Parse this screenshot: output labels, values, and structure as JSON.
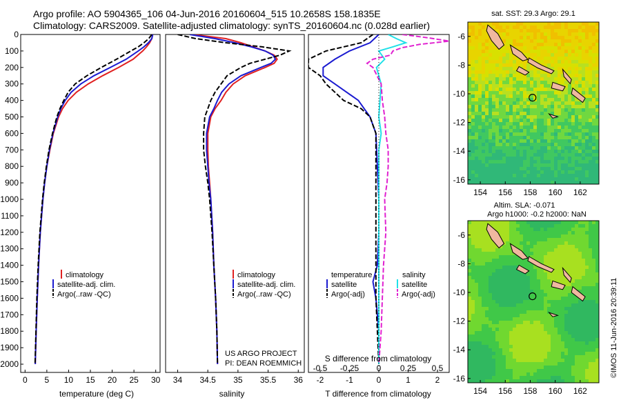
{
  "header": {
    "line1": "Argo profile: AO 5904365_106 04-Jun-2016 20160604_515 10.2658S 158.1835E",
    "line2": "Climatology: CARS2009. Satellite-adjusted climatology: synTS_20160604.nc (0.028d earlier)"
  },
  "colors": {
    "climatology": "#e02020",
    "satellite": "#1a1ad0",
    "argo": "#000000",
    "sal_satellite": "#20e0e8",
    "sal_argo": "#e020d0"
  },
  "chart_data": [
    {
      "type": "line",
      "panel": "temperature",
      "xlabel": "temperature (deg C)",
      "ylabel": "",
      "xlim": [
        -1,
        31
      ],
      "ylim": [
        2050,
        0
      ],
      "xticks": [
        0,
        5,
        10,
        15,
        20,
        25,
        30
      ],
      "yticks": [
        0,
        100,
        200,
        300,
        400,
        500,
        600,
        700,
        800,
        900,
        1000,
        1100,
        1200,
        1300,
        1400,
        1500,
        1600,
        1700,
        1800,
        1900,
        2000
      ],
      "legend": [
        "climatology",
        "satellite-adj. clim.",
        "Argo(..raw -QC)"
      ],
      "series": [
        {
          "name": "climatology",
          "depth": [
            0,
            25,
            50,
            75,
            100,
            150,
            200,
            250,
            300,
            350,
            400,
            450,
            500,
            600,
            700,
            800,
            900,
            1000,
            1200,
            1400,
            1600,
            1800,
            2000
          ],
          "values": [
            29.3,
            29.1,
            28.6,
            27.9,
            27.0,
            24.8,
            21.5,
            17.8,
            14.5,
            11.8,
            9.9,
            8.6,
            7.7,
            6.5,
            5.7,
            5.0,
            4.5,
            4.1,
            3.5,
            3.1,
            2.8,
            2.55,
            2.35
          ]
        },
        {
          "name": "satellite-adj. clim.",
          "depth": [
            0,
            25,
            50,
            75,
            100,
            150,
            200,
            250,
            300,
            350,
            400,
            450,
            500,
            600,
            700,
            800,
            900,
            1000,
            1200,
            1400,
            1600,
            1800,
            2000
          ],
          "values": [
            29.3,
            29.1,
            28.3,
            27.3,
            26.0,
            23.2,
            19.6,
            15.8,
            12.8,
            10.6,
            9.2,
            8.2,
            7.5,
            6.4,
            5.6,
            5.0,
            4.5,
            4.1,
            3.5,
            3.1,
            2.8,
            2.55,
            2.35
          ]
        },
        {
          "name": "Argo(..raw -QC)",
          "depth": [
            0,
            25,
            50,
            75,
            100,
            150,
            200,
            250,
            300,
            350,
            400,
            450,
            500,
            600,
            700,
            800,
            900,
            1000,
            1200,
            1400,
            1600,
            1800,
            2000
          ],
          "values": [
            29.1,
            28.4,
            27.3,
            26.0,
            24.3,
            21.0,
            17.5,
            14.2,
            11.5,
            9.9,
            8.9,
            8.0,
            7.3,
            6.3,
            5.5,
            4.9,
            4.4,
            4.0,
            3.4,
            3.0,
            2.7,
            2.5,
            2.3
          ]
        }
      ]
    },
    {
      "type": "line",
      "panel": "salinity",
      "xlabel": "salinity",
      "ylabel": "",
      "xlim": [
        33.8,
        36.1
      ],
      "ylim": [
        2050,
        0
      ],
      "xticks": [
        34,
        34.5,
        35,
        35.5,
        36
      ],
      "legend": [
        "climatology",
        "satellite-adj. clim.",
        "Argo(..raw -QC)"
      ],
      "annotation": [
        "US ARGO PROJECT",
        "PI: DEAN ROEMMICH"
      ],
      "series": [
        {
          "name": "climatology",
          "depth": [
            0,
            25,
            50,
            75,
            100,
            125,
            150,
            175,
            200,
            250,
            300,
            350,
            400,
            450,
            500,
            600,
            700,
            800,
            900,
            1000,
            1200,
            1400,
            1600,
            1800,
            2000
          ],
          "values": [
            34.25,
            34.8,
            35.05,
            35.25,
            35.45,
            35.6,
            35.65,
            35.6,
            35.45,
            35.12,
            34.92,
            34.8,
            34.72,
            34.62,
            34.55,
            34.5,
            34.5,
            34.51,
            34.53,
            34.55,
            34.58,
            34.6,
            34.63,
            34.65,
            34.66
          ]
        },
        {
          "name": "satellite-adj. clim.",
          "depth": [
            0,
            25,
            50,
            75,
            100,
            125,
            150,
            175,
            200,
            250,
            300,
            350,
            400,
            450,
            500,
            600,
            700,
            800,
            900,
            1000,
            1200,
            1400,
            1600,
            1800,
            2000
          ],
          "values": [
            34.2,
            34.62,
            34.95,
            35.22,
            35.45,
            35.58,
            35.62,
            35.55,
            35.38,
            35.05,
            34.85,
            34.73,
            34.66,
            34.6,
            34.53,
            34.48,
            34.48,
            34.5,
            34.52,
            34.55,
            34.58,
            34.6,
            34.63,
            34.65,
            34.66
          ]
        },
        {
          "name": "Argo(..raw -QC)",
          "depth": [
            0,
            25,
            50,
            75,
            100,
            125,
            150,
            175,
            200,
            250,
            300,
            350,
            400,
            450,
            500,
            600,
            700,
            800,
            900,
            1000,
            1200,
            1400,
            1600,
            1800,
            2000
          ],
          "values": [
            34.0,
            34.3,
            34.8,
            35.4,
            35.85,
            35.7,
            35.45,
            35.2,
            35.05,
            34.82,
            34.72,
            34.62,
            34.55,
            34.5,
            34.45,
            34.43,
            34.43,
            34.46,
            34.5,
            34.53,
            34.57,
            34.6,
            34.63,
            34.65,
            34.66
          ]
        }
      ]
    },
    {
      "type": "line",
      "panel": "difference",
      "xlabel": "T difference from climatology",
      "xlabel_top": "S difference from climatology",
      "xlim": [
        -2.4,
        2.4
      ],
      "ylim": [
        2050,
        0
      ],
      "xticks": [
        -2,
        -1,
        0,
        1,
        2
      ],
      "xticks_s": [
        "-0.5",
        "-0.25",
        "0",
        "0.25",
        "0.5"
      ],
      "xticks_s_values": [
        -0.5,
        -0.25,
        0,
        0.25,
        0.5
      ],
      "s_scale": 4,
      "legend_headers": [
        "temperature",
        "salinity"
      ],
      "legend": [
        "satellite",
        "Argo(-adj)",
        "satellite",
        "Argo(-adj)"
      ],
      "series": [
        {
          "name": "satellite",
          "variable": "temperature",
          "depth": [
            0,
            50,
            100,
            150,
            200,
            250,
            300,
            400,
            500,
            600,
            800,
            1000,
            1200,
            1400,
            1500,
            1600,
            1800,
            2000
          ],
          "values": [
            0,
            -0.3,
            -1.0,
            -1.5,
            -1.9,
            -1.9,
            -1.5,
            -0.7,
            -0.3,
            -0.1,
            -0.05,
            0,
            0,
            -0.05,
            -0.2,
            -0.1,
            0,
            0
          ]
        },
        {
          "name": "Argo(-adj)",
          "variable": "temperature",
          "depth": [
            0,
            50,
            100,
            150,
            200,
            250,
            300,
            350,
            400,
            450,
            500,
            550,
            600,
            700,
            800,
            1000,
            1200,
            1400,
            1600,
            1800,
            2000
          ],
          "values": [
            -0.2,
            -0.6,
            -1.8,
            -2.4,
            -2.4,
            -2.0,
            -1.8,
            -1.5,
            -1.2,
            -0.6,
            -0.3,
            -0.2,
            -0.1,
            -0.1,
            -0.1,
            -0.1,
            -0.1,
            -0.1,
            -0.1,
            -0.05,
            0
          ]
        },
        {
          "name": "satellite",
          "variable": "salinity",
          "depth": [
            0,
            25,
            50,
            75,
            100,
            150,
            200,
            250,
            300,
            400,
            500,
            600,
            700,
            800,
            1000,
            1200,
            1400,
            1600,
            1800,
            2000
          ],
          "values": [
            0.08,
            0.15,
            0.23,
            0.12,
            0.0,
            0.05,
            -0.02,
            0.0,
            0.02,
            0.01,
            0.0,
            0.02,
            0.0,
            0.0,
            0.0,
            0.0,
            0.0,
            0.0,
            0.0,
            0.0
          ]
        },
        {
          "name": "Argo(-adj)",
          "variable": "salinity",
          "depth": [
            0,
            20,
            40,
            60,
            80,
            100,
            125,
            150,
            175,
            200,
            300,
            400,
            500,
            600,
            700,
            800,
            900,
            1000,
            1200,
            1400,
            1600,
            1800,
            2000
          ],
          "values": [
            0.2,
            0.42,
            0.6,
            0.35,
            0.2,
            0.12,
            0.1,
            -0.05,
            -0.1,
            -0.05,
            0.02,
            0.03,
            0.05,
            0.06,
            0.08,
            0.08,
            0.07,
            0.05,
            0.06,
            0.04,
            0.03,
            0.02,
            0.0
          ]
        }
      ]
    },
    {
      "type": "heatmap",
      "panel": "sst_map",
      "title": "sat. SST: 29.3 Argo: 29.1",
      "xlim": [
        153,
        163.5
      ],
      "ylim": [
        -16.3,
        -5
      ],
      "xticks": [
        154,
        156,
        158,
        160,
        162
      ],
      "yticks": [
        -6,
        -8,
        -10,
        -12,
        -14,
        -16
      ],
      "marker": {
        "lon": 158.18,
        "lat": -10.27
      }
    },
    {
      "type": "heatmap",
      "panel": "sla_map",
      "title": "Altim. SLA: -0.071",
      "subtitle": "Argo h1000: -0.2 h2000: NaN",
      "xlim": [
        153,
        163.5
      ],
      "ylim": [
        -16.3,
        -5
      ],
      "xticks": [
        154,
        156,
        158,
        160,
        162
      ],
      "yticks": [
        -6,
        -8,
        -10,
        -12,
        -14,
        -16
      ],
      "marker": {
        "lon": 158.18,
        "lat": -10.27
      }
    }
  ],
  "credit": "©IMOS 11-Jun-2016 20:39:11"
}
